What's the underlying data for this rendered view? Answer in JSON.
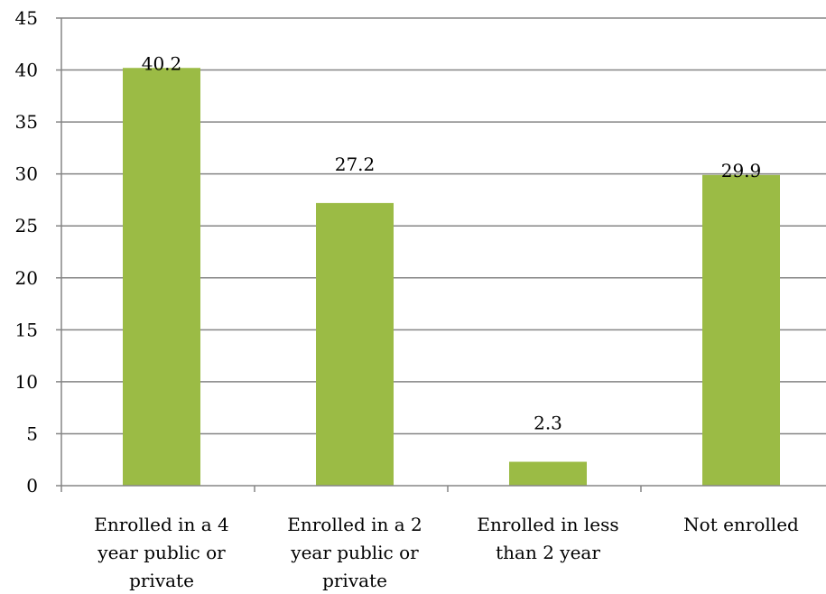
{
  "chart_data": {
    "type": "bar",
    "categories": [
      [
        "Enrolled in a 4",
        "year public or",
        "private"
      ],
      [
        "Enrolled in a 2",
        "year public or",
        "private"
      ],
      [
        "Enrolled in less",
        "than 2 year"
      ],
      [
        "Not enrolled"
      ]
    ],
    "values": [
      40.2,
      27.2,
      2.3,
      29.9
    ],
    "data_labels": [
      "40.2",
      "27.2",
      "2.3",
      "29.9"
    ],
    "ylim": [
      0,
      45
    ],
    "yticks": [
      0,
      5,
      10,
      15,
      20,
      25,
      30,
      35,
      40,
      45
    ],
    "grid": true,
    "bar_color": "#9BBB45",
    "grid_color": "#858585",
    "title": "",
    "xlabel": "",
    "ylabel": ""
  }
}
